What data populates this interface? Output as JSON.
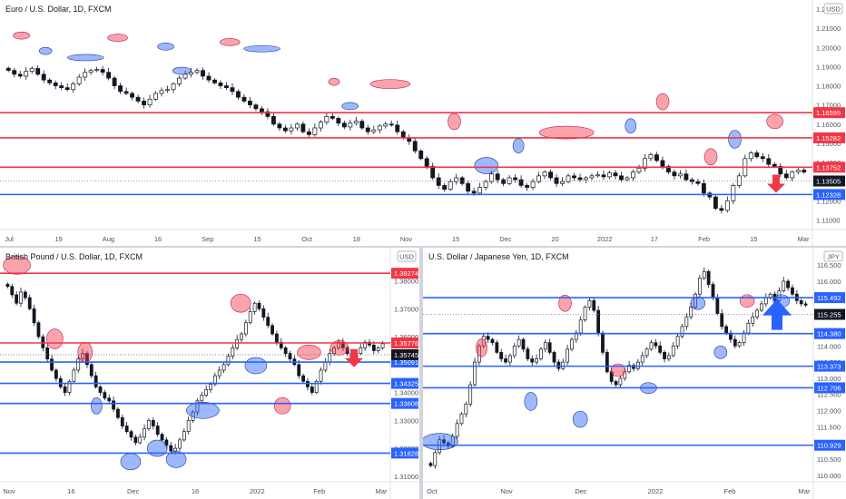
{
  "chart_data": [
    {
      "type": "candlestick",
      "title": "Euro / U.S. Dollar, 1D, FXCM",
      "currency_badge": "USD",
      "ylim": [
        1.105,
        1.22
      ],
      "y_ticks": [
        "1.22000",
        "1.21000",
        "1.20000",
        "1.19000",
        "1.18000",
        "1.17000",
        "1.16000",
        "1.15000",
        "1.14000",
        "1.13000",
        "1.12000",
        "1.11000"
      ],
      "x_ticks": [
        "Jul",
        "19",
        "Aug",
        "16",
        "Sep",
        "15",
        "Oct",
        "18",
        "Nov",
        "15",
        "Dec",
        "20",
        "2022",
        "17",
        "Feb",
        "15",
        "Mar"
      ],
      "price_label": {
        "value": "1.13505"
      },
      "levels": [
        {
          "value": 1.16595,
          "color": "#f23645",
          "label": "1.16595"
        },
        {
          "value": 1.15282,
          "color": "#f23645",
          "label": "1.15282"
        },
        {
          "value": 1.13752,
          "color": "#f23645",
          "label": "1.13752"
        },
        {
          "value": 1.12328,
          "color": "#2962ff",
          "label": "1.12328"
        }
      ],
      "arrow": {
        "direction": "down",
        "color": "#f23645"
      },
      "closes": [
        1.188,
        1.186,
        1.185,
        1.1875,
        1.189,
        1.186,
        1.183,
        1.1815,
        1.18,
        1.179,
        1.178,
        1.181,
        1.1845,
        1.187,
        1.188,
        1.1885,
        1.187,
        1.184,
        1.18,
        1.177,
        1.176,
        1.174,
        1.172,
        1.17,
        1.173,
        1.176,
        1.1775,
        1.178,
        1.181,
        1.184,
        1.186,
        1.187,
        1.188,
        1.185,
        1.183,
        1.1815,
        1.18,
        1.179,
        1.177,
        1.174,
        1.172,
        1.17,
        1.168,
        1.1665,
        1.164,
        1.16,
        1.158,
        1.1565,
        1.158,
        1.16,
        1.156,
        1.1545,
        1.158,
        1.161,
        1.164,
        1.163,
        1.1605,
        1.1585,
        1.1605,
        1.1615,
        1.158,
        1.156,
        1.157,
        1.159,
        1.16,
        1.1595,
        1.156,
        1.153,
        1.151,
        1.146,
        1.142,
        1.138,
        1.132,
        1.128,
        1.126,
        1.13,
        1.132,
        1.129,
        1.125,
        1.124,
        1.127,
        1.13,
        1.134,
        1.131,
        1.129,
        1.132,
        1.131,
        1.128,
        1.127,
        1.13,
        1.133,
        1.135,
        1.132,
        1.129,
        1.13,
        1.133,
        1.132,
        1.131,
        1.132,
        1.133,
        1.1335,
        1.1325,
        1.1345,
        1.133,
        1.131,
        1.132,
        1.135,
        1.137,
        1.142,
        1.144,
        1.141,
        1.138,
        1.135,
        1.133,
        1.134,
        1.131,
        1.13,
        1.129,
        1.124,
        1.122,
        1.116,
        1.115,
        1.12,
        1.128,
        1.133,
        1.142,
        1.145,
        1.143,
        1.142,
        1.139,
        1.138,
        1.134,
        1.132,
        1.135,
        1.136,
        1.135
      ]
    },
    {
      "type": "candlestick",
      "title": "British Pound / U.S. Dollar, 1D, FXCM",
      "currency_badge": "USD",
      "ylim": [
        1.308,
        1.388
      ],
      "y_ticks": [
        "1.38000",
        "1.37000",
        "1.36000",
        "1.35000",
        "1.34000",
        "1.33000",
        "1.32000",
        "1.31000"
      ],
      "x_ticks": [
        "Nov",
        "16",
        "Dec",
        "16",
        "2022",
        "Feb",
        "Mar"
      ],
      "price_label": {
        "value": "1.35745"
      },
      "levels": [
        {
          "value": 1.38274,
          "color": "#f23645",
          "label": "1.38274"
        },
        {
          "value": 1.35776,
          "color": "#f23645",
          "label": "1.35776"
        },
        {
          "value": 1.35091,
          "color": "#2962ff",
          "label": "1.35091"
        },
        {
          "value": 1.34325,
          "color": "#2962ff",
          "label": "1.34325"
        },
        {
          "value": 1.33608,
          "color": "#2962ff",
          "label": "1.33608"
        },
        {
          "value": 1.31828,
          "color": "#2962ff",
          "label": "1.31828"
        }
      ],
      "arrow": {
        "direction": "down",
        "color": "#f23645"
      },
      "closes": [
        1.378,
        1.375,
        1.372,
        1.376,
        1.374,
        1.37,
        1.365,
        1.36,
        1.356,
        1.352,
        1.348,
        1.345,
        1.342,
        1.34,
        1.344,
        1.348,
        1.352,
        1.354,
        1.35,
        1.346,
        1.342,
        1.34,
        1.338,
        1.337,
        1.334,
        1.331,
        1.328,
        1.326,
        1.324,
        1.322,
        1.324,
        1.327,
        1.33,
        1.328,
        1.325,
        1.323,
        1.321,
        1.319,
        1.32,
        1.323,
        1.326,
        1.33,
        1.333,
        1.337,
        1.339,
        1.341,
        1.343,
        1.346,
        1.348,
        1.35,
        1.353,
        1.356,
        1.359,
        1.361,
        1.365,
        1.369,
        1.372,
        1.37,
        1.367,
        1.364,
        1.361,
        1.358,
        1.356,
        1.354,
        1.352,
        1.35,
        1.346,
        1.344,
        1.342,
        1.34,
        1.344,
        1.348,
        1.351,
        1.354,
        1.356,
        1.358,
        1.356,
        1.354,
        1.352,
        1.354,
        1.356,
        1.358,
        1.357,
        1.355,
        1.356,
        1.3575
      ]
    },
    {
      "type": "candlestick",
      "title": "U.S. Dollar / Japanese Yen, 1D, FXCM",
      "currency_badge": "JPY",
      "ylim": [
        109.8,
        116.7
      ],
      "y_ticks": [
        "116.500",
        "116.000",
        "115.500",
        "115.000",
        "114.500",
        "114.000",
        "113.500",
        "113.000",
        "112.500",
        "112.000",
        "111.500",
        "111.000",
        "110.500",
        "110.000"
      ],
      "x_ticks": [
        "Oct",
        "Nov",
        "Dec",
        "2022",
        "Feb",
        "Mar"
      ],
      "price_label": {
        "value": "115.255"
      },
      "levels": [
        {
          "value": 115.492,
          "color": "#2962ff",
          "label": "115.492"
        },
        {
          "value": 114.38,
          "color": "#2962ff",
          "label": "114.380"
        },
        {
          "value": 113.373,
          "color": "#2962ff",
          "label": "113.373"
        },
        {
          "value": 112.706,
          "color": "#2962ff",
          "label": "112.706"
        },
        {
          "value": 110.929,
          "color": "#2962ff",
          "label": "110.929"
        }
      ],
      "arrow": {
        "direction": "up",
        "color": "#2962ff"
      },
      "closes": [
        110.3,
        110.7,
        111.1,
        111.0,
        110.9,
        111.2,
        111.6,
        111.9,
        112.2,
        112.8,
        113.5,
        114.0,
        114.3,
        114.2,
        114.1,
        113.8,
        113.6,
        113.5,
        113.7,
        114.0,
        114.2,
        113.9,
        113.6,
        113.5,
        113.6,
        113.9,
        114.1,
        113.8,
        113.5,
        113.3,
        113.5,
        113.9,
        114.2,
        114.4,
        114.8,
        115.2,
        115.4,
        115.1,
        114.4,
        113.8,
        113.2,
        112.9,
        112.8,
        113.0,
        113.2,
        113.4,
        113.3,
        113.5,
        113.7,
        113.9,
        114.1,
        114.0,
        113.8,
        113.6,
        113.7,
        114.0,
        114.3,
        114.6,
        114.9,
        115.2,
        115.6,
        116.1,
        116.3,
        115.9,
        115.5,
        115.0,
        114.6,
        114.4,
        114.2,
        114.0,
        114.1,
        114.4,
        114.7,
        114.9,
        115.1,
        115.3,
        115.5,
        115.6,
        115.4,
        115.7,
        116.0,
        115.8,
        115.6,
        115.4,
        115.3,
        115.26
      ]
    }
  ]
}
